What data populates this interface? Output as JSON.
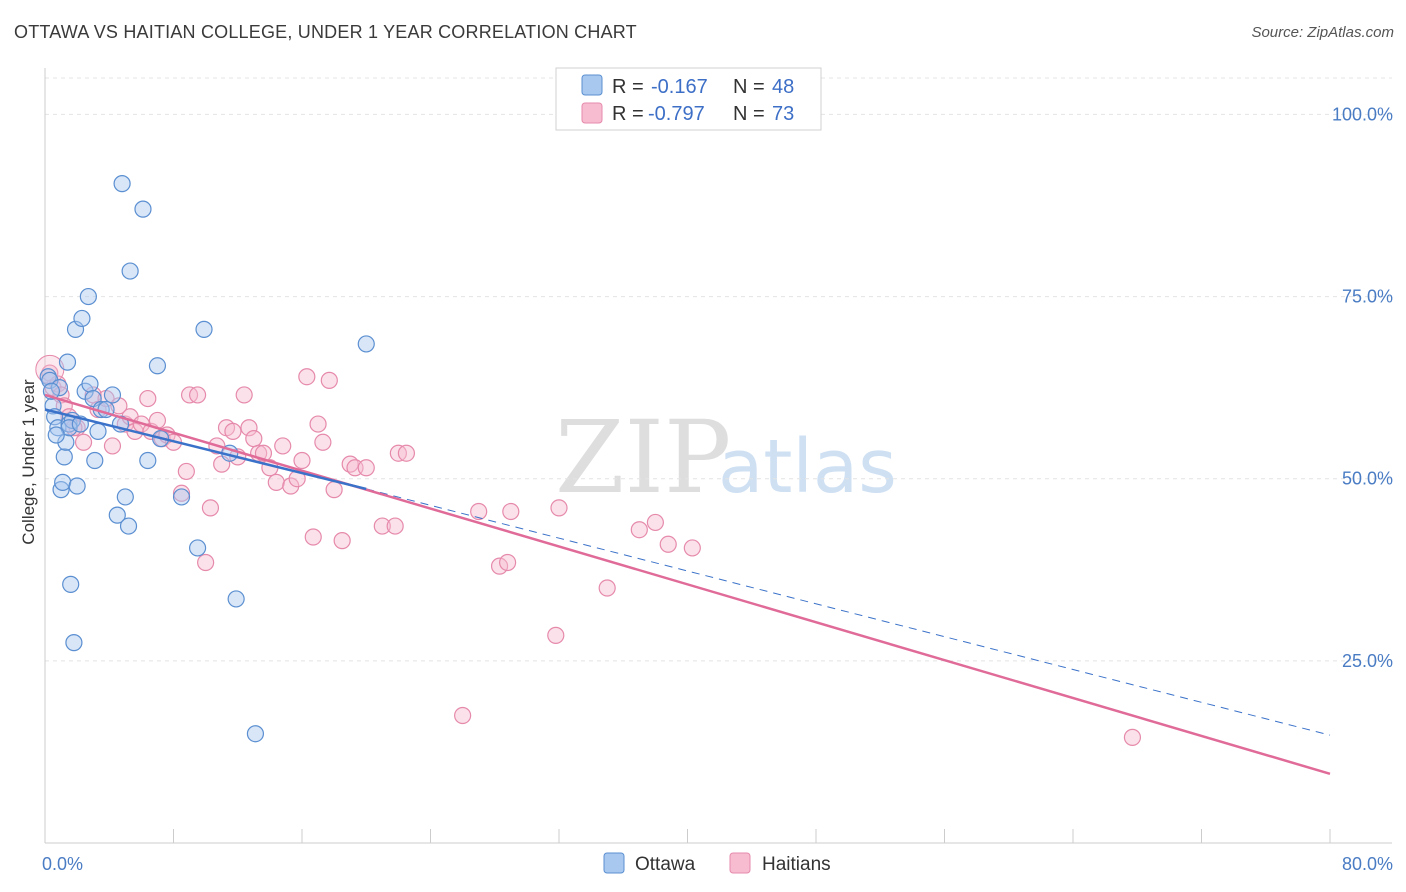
{
  "title": "OTTAWA VS HAITIAN COLLEGE, UNDER 1 YEAR CORRELATION CHART",
  "source": "Source: ZipAtlas.com",
  "watermark": {
    "zip": "ZIP",
    "atlas": "atlas"
  },
  "legend": {
    "r_label": "R =",
    "n_label": "N =",
    "rows": [
      {
        "r": "-0.167",
        "n": "48"
      },
      {
        "r": "-0.797",
        "n": "73"
      }
    ]
  },
  "colors": {
    "ottawa_fill": "#a9c8ef",
    "ottawa_stroke": "#5b8fd1",
    "ottawa_line": "#3b72c9",
    "haitians_fill": "#f7bcd0",
    "haitians_stroke": "#e68aab",
    "haitians_line": "#e06b98"
  },
  "chart_data": {
    "type": "scatter",
    "title": "OTTAWA VS HAITIAN COLLEGE, UNDER 1 YEAR CORRELATION CHART",
    "xlabel": "",
    "ylabel": "College, Under 1 year",
    "xlim": [
      0,
      80
    ],
    "ylim": [
      0,
      105
    ],
    "x_tick_labels": [
      "0.0%",
      "80.0%"
    ],
    "y_ticks": [
      {
        "value": 25,
        "label": "25.0%"
      },
      {
        "value": 50,
        "label": "50.0%"
      },
      {
        "value": 75,
        "label": "75.0%"
      },
      {
        "value": 100,
        "label": "100.0%"
      }
    ],
    "grid": true,
    "legend": [
      "Ottawa",
      "Haitians"
    ],
    "series": [
      {
        "name": "Ottawa",
        "trend": {
          "x0": 0,
          "y0": 59.5,
          "x1": 20,
          "y1": 48.6,
          "dashed_to_x": 80,
          "dashed_y": 14.8
        },
        "points": [
          [
            0.2,
            64.0
          ],
          [
            0.3,
            63.5
          ],
          [
            0.5,
            60.0
          ],
          [
            0.6,
            58.5
          ],
          [
            0.8,
            57.0
          ],
          [
            0.9,
            62.5
          ],
          [
            1.0,
            48.5
          ],
          [
            1.1,
            49.5
          ],
          [
            1.2,
            53.0
          ],
          [
            1.3,
            55.0
          ],
          [
            1.4,
            66.0
          ],
          [
            1.5,
            57.5
          ],
          [
            1.6,
            35.5
          ],
          [
            1.7,
            58.0
          ],
          [
            1.8,
            27.5
          ],
          [
            1.9,
            70.5
          ],
          [
            2.0,
            49.0
          ],
          [
            2.3,
            72.0
          ],
          [
            2.5,
            62.0
          ],
          [
            2.7,
            75.0
          ],
          [
            2.8,
            63.0
          ],
          [
            3.0,
            61.0
          ],
          [
            3.1,
            52.5
          ],
          [
            3.3,
            56.5
          ],
          [
            3.5,
            59.5
          ],
          [
            4.2,
            61.5
          ],
          [
            4.5,
            45.0
          ],
          [
            4.7,
            57.5
          ],
          [
            4.8,
            90.5
          ],
          [
            5.0,
            47.5
          ],
          [
            5.2,
            43.5
          ],
          [
            5.3,
            78.5
          ],
          [
            6.1,
            87.0
          ],
          [
            6.4,
            52.5
          ],
          [
            7.0,
            65.5
          ],
          [
            7.2,
            55.5
          ],
          [
            8.5,
            47.5
          ],
          [
            9.5,
            40.5
          ],
          [
            9.9,
            70.5
          ],
          [
            11.5,
            53.5
          ],
          [
            11.9,
            33.5
          ],
          [
            13.1,
            15.0
          ],
          [
            20.0,
            68.5
          ],
          [
            0.4,
            62.0
          ],
          [
            1.5,
            57.0
          ],
          [
            2.2,
            57.5
          ],
          [
            3.8,
            59.5
          ],
          [
            0.7,
            56.0
          ]
        ]
      },
      {
        "name": "Haitians",
        "trend": {
          "x0": 0,
          "y0": 61.5,
          "x1": 80,
          "y1": 9.5
        },
        "points": [
          [
            0.3,
            64.5
          ],
          [
            0.5,
            62.5
          ],
          [
            0.8,
            63.0
          ],
          [
            1.0,
            61.5
          ],
          [
            1.2,
            60.0
          ],
          [
            1.5,
            58.5
          ],
          [
            2.0,
            57.0
          ],
          [
            2.4,
            55.0
          ],
          [
            3.0,
            61.5
          ],
          [
            3.3,
            59.5
          ],
          [
            3.8,
            61.0
          ],
          [
            4.2,
            54.5
          ],
          [
            4.6,
            60.0
          ],
          [
            5.0,
            57.5
          ],
          [
            5.3,
            58.5
          ],
          [
            5.6,
            56.5
          ],
          [
            6.0,
            57.5
          ],
          [
            6.4,
            61.0
          ],
          [
            6.6,
            56.5
          ],
          [
            7.0,
            58.0
          ],
          [
            7.3,
            55.5
          ],
          [
            7.6,
            56.0
          ],
          [
            8.0,
            55.0
          ],
          [
            8.5,
            48.0
          ],
          [
            8.8,
            51.0
          ],
          [
            9.0,
            61.5
          ],
          [
            9.5,
            61.5
          ],
          [
            10.0,
            38.5
          ],
          [
            10.3,
            46.0
          ],
          [
            10.7,
            54.5
          ],
          [
            11.0,
            52.0
          ],
          [
            11.3,
            57.0
          ],
          [
            11.7,
            56.5
          ],
          [
            12.0,
            53.0
          ],
          [
            12.4,
            61.5
          ],
          [
            12.7,
            57.0
          ],
          [
            13.0,
            55.5
          ],
          [
            13.3,
            53.5
          ],
          [
            13.6,
            53.5
          ],
          [
            14.0,
            51.5
          ],
          [
            14.4,
            49.5
          ],
          [
            14.8,
            54.5
          ],
          [
            15.3,
            49.0
          ],
          [
            15.7,
            50.0
          ],
          [
            16.0,
            52.5
          ],
          [
            16.3,
            64.0
          ],
          [
            16.7,
            42.0
          ],
          [
            17.0,
            57.5
          ],
          [
            17.3,
            55.0
          ],
          [
            17.7,
            63.5
          ],
          [
            18.0,
            48.5
          ],
          [
            18.5,
            41.5
          ],
          [
            19.0,
            52.0
          ],
          [
            19.3,
            51.5
          ],
          [
            20.0,
            51.5
          ],
          [
            21.0,
            43.5
          ],
          [
            21.8,
            43.5
          ],
          [
            22.0,
            53.5
          ],
          [
            22.5,
            53.5
          ],
          [
            27.0,
            45.5
          ],
          [
            28.3,
            38.0
          ],
          [
            28.8,
            38.5
          ],
          [
            29.0,
            45.5
          ],
          [
            31.8,
            28.5
          ],
          [
            32.0,
            46.0
          ],
          [
            35.0,
            35.0
          ],
          [
            37.0,
            43.0
          ],
          [
            38.0,
            44.0
          ],
          [
            38.8,
            41.0
          ],
          [
            40.3,
            40.5
          ],
          [
            26.0,
            17.5
          ],
          [
            67.7,
            14.5
          ],
          [
            1.8,
            57.0
          ]
        ]
      }
    ]
  },
  "bottom_legend": {
    "ottawa": "Ottawa",
    "haitians": "Haitians"
  }
}
